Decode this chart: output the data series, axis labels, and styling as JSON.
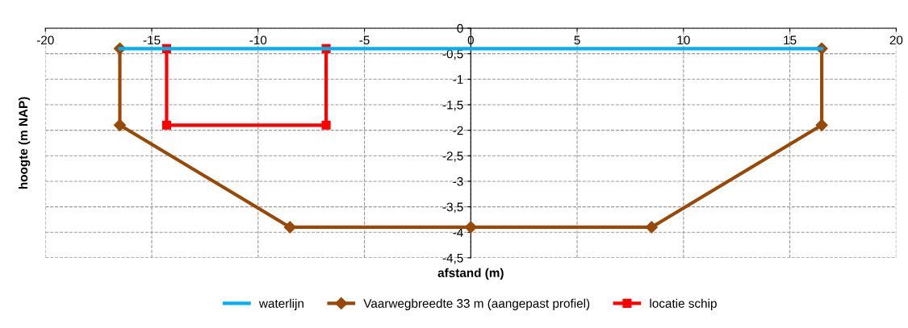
{
  "chart_data": {
    "type": "line",
    "xlabel": "afstand (m)",
    "ylabel": "hoogte (m NAP)",
    "xlim": [
      -20,
      20
    ],
    "ylim": [
      -4.5,
      0
    ],
    "xticks": [
      -20,
      -15,
      -10,
      -5,
      0,
      5,
      10,
      15,
      20
    ],
    "yticks": [
      0,
      {
        "value": -0.5,
        "label": "-0,5"
      },
      -1,
      {
        "value": -1.5,
        "label": "-1,5"
      },
      -2,
      {
        "value": -2.5,
        "label": "-2,5"
      },
      -3,
      {
        "value": -3.5,
        "label": "-3,5"
      },
      -4,
      {
        "value": -4.5,
        "label": "-4,5"
      }
    ],
    "grid": true,
    "legend": "bottom",
    "line_style": "solid",
    "series": [
      {
        "name": "waterlijn",
        "color": "#00b0f0",
        "marker": "none",
        "x": [
          -16.5,
          16.5
        ],
        "values": [
          -0.4,
          -0.4
        ]
      },
      {
        "name": "Vaarwegbreedte 33 m (aangepast profiel)",
        "color": "#984807",
        "marker": "diamond",
        "x": [
          -16.5,
          -16.5,
          -8.5,
          0,
          8.5,
          16.5,
          16.5
        ],
        "values": [
          -0.4,
          -1.9,
          -3.9,
          -3.9,
          -3.9,
          -1.9,
          -0.4
        ]
      },
      {
        "name": "locatie schip",
        "color": "#ff0000",
        "marker": "square",
        "x": [
          -14.3,
          -14.3,
          -6.8,
          -6.8
        ],
        "values": [
          -0.4,
          -1.9,
          -1.9,
          -0.4
        ]
      }
    ]
  }
}
